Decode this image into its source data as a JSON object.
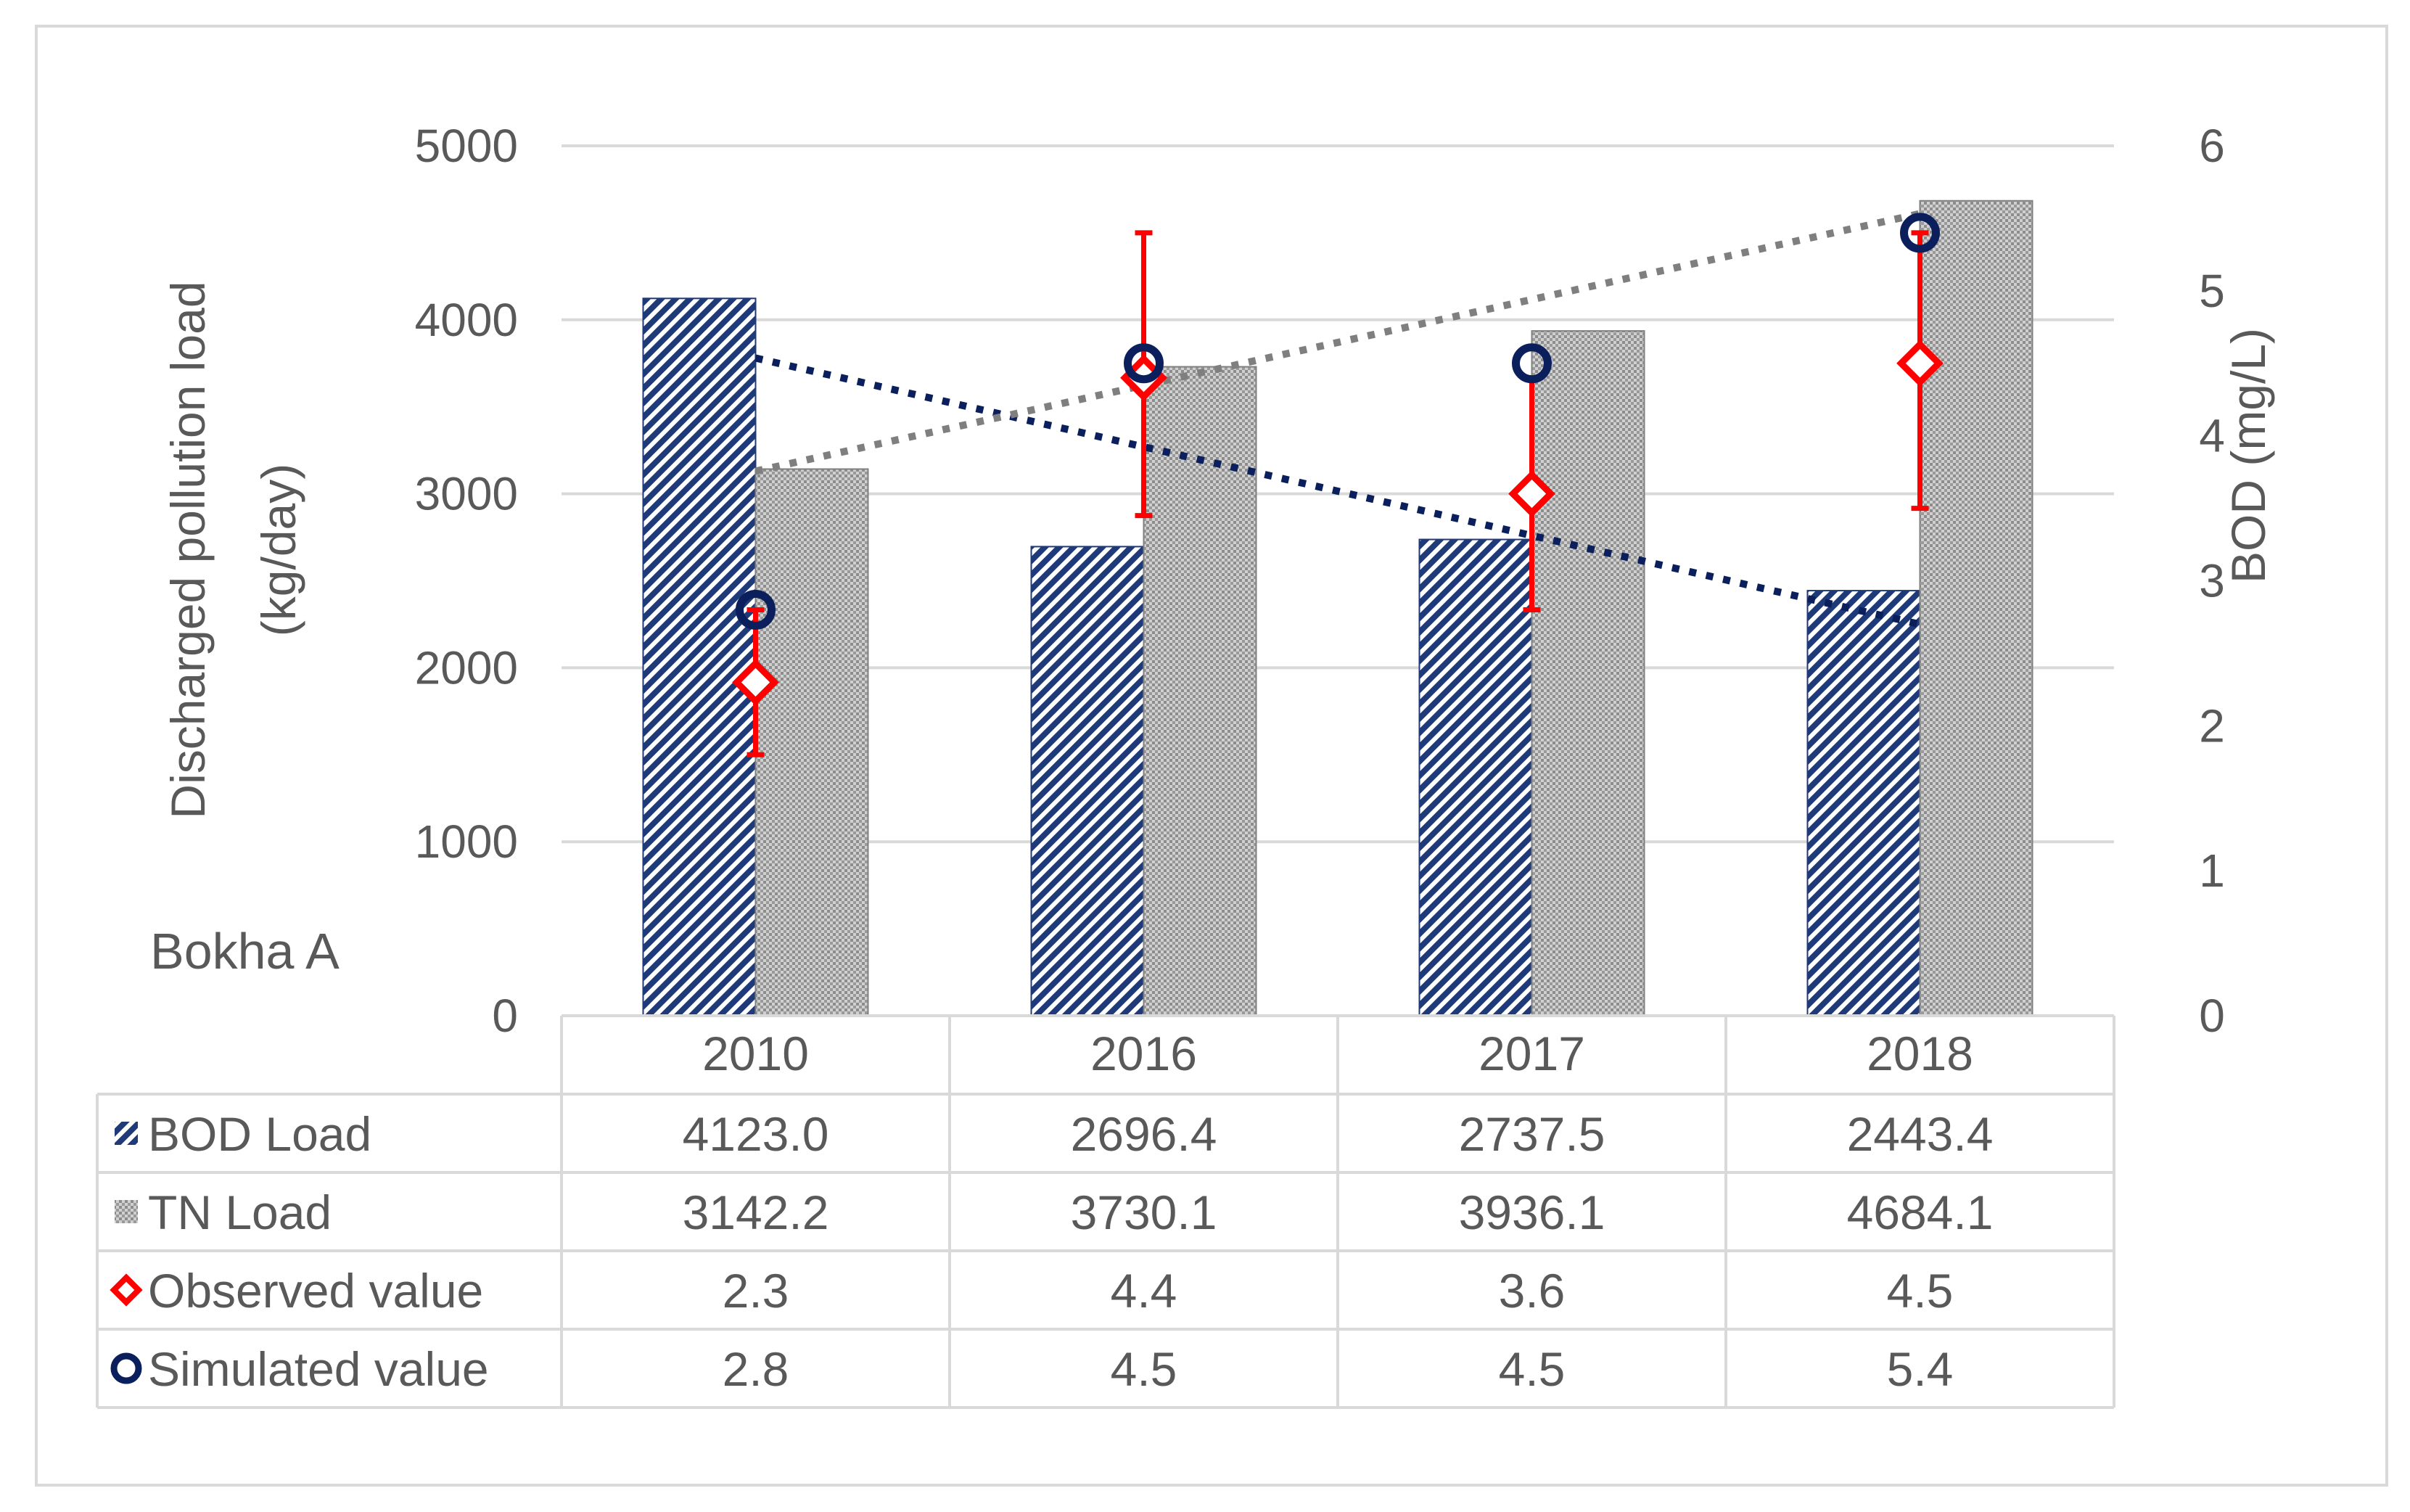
{
  "chart_data": {
    "type": "bar",
    "panel_label": "Bokha A",
    "categories": [
      "2010",
      "2016",
      "2017",
      "2018"
    ],
    "left_axis": {
      "title_line1": "Discharged pollution load",
      "title_line2": "(kg/day)",
      "ticks": [
        "0",
        "1000",
        "2000",
        "3000",
        "4000",
        "5000"
      ],
      "range": [
        0,
        5000
      ]
    },
    "right_axis": {
      "title": "BOD (mg/L)",
      "ticks": [
        "0",
        "1",
        "2",
        "3",
        "4",
        "5",
        "6"
      ],
      "range": [
        0,
        6
      ]
    },
    "series": [
      {
        "name": "BOD Load",
        "kind": "bar",
        "axis": "left",
        "values": [
          4123.0,
          2696.4,
          2737.5,
          2443.4
        ],
        "labels": [
          "4123.0",
          "2696.4",
          "2737.5",
          "2443.4"
        ],
        "color": "#1f3a78"
      },
      {
        "name": "TN Load",
        "kind": "bar",
        "axis": "left",
        "values": [
          3142.2,
          3730.1,
          3936.1,
          4684.1
        ],
        "labels": [
          "3142.2",
          "3730.1",
          "3936.1",
          "4684.1"
        ],
        "color": "#a6a6a6"
      },
      {
        "name": "Observed value",
        "kind": "marker-diamond",
        "axis": "right",
        "values": [
          2.3,
          4.4,
          3.6,
          4.5
        ],
        "labels": [
          "2.3",
          "4.4",
          "3.6",
          "4.5"
        ],
        "error_low": [
          1.8,
          3.45,
          2.8,
          3.5
        ],
        "error_high": [
          2.8,
          5.4,
          4.4,
          5.4
        ],
        "color": "#ff0000"
      },
      {
        "name": "Simulated value",
        "kind": "marker-circle",
        "axis": "right",
        "values": [
          2.8,
          4.5,
          4.5,
          5.4
        ],
        "labels": [
          "2.8",
          "4.5",
          "4.5",
          "5.4"
        ],
        "color": "#0b1f5c"
      }
    ],
    "trendlines": [
      {
        "of": "BOD Load",
        "axis": "left",
        "from": 3780,
        "to": 2250,
        "color": "#0b1f5c"
      },
      {
        "of": "TN Load",
        "axis": "left",
        "from": 3130,
        "to": 4610,
        "color": "#7f7f7f"
      }
    ],
    "grid": true,
    "legend": "data-table"
  }
}
